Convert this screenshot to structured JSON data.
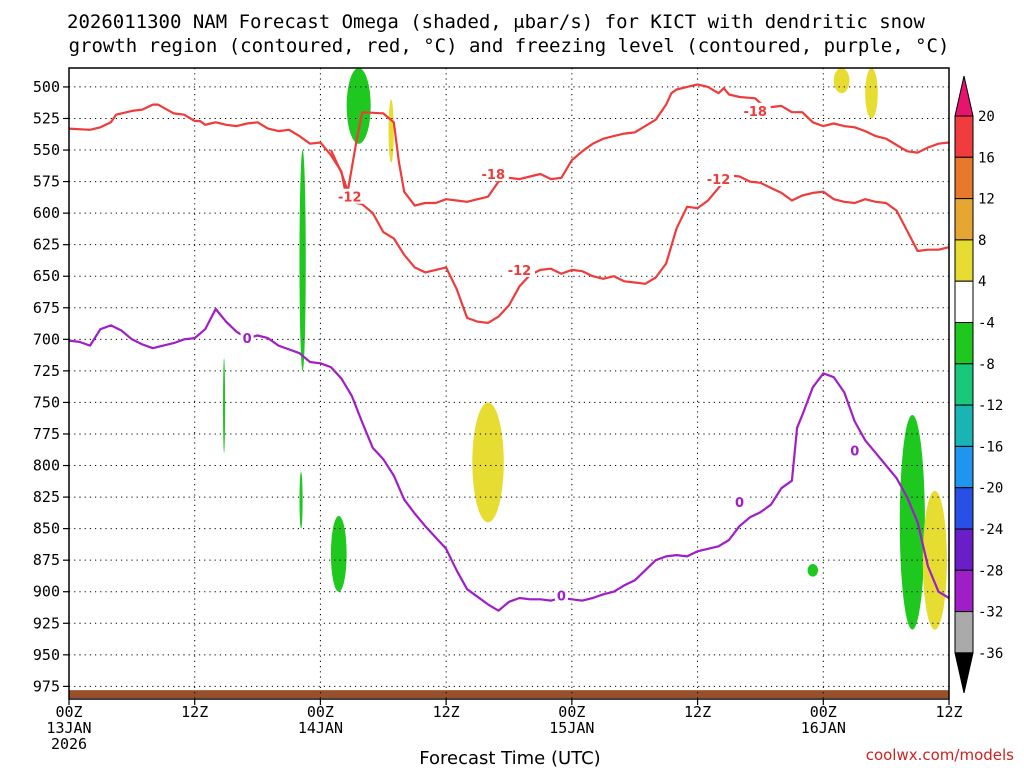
{
  "chart_data": {
    "type": "time-height contour",
    "title_line1": "2026011300 NAM Forecast Omega (shaded, μbar/s) for KICT with dendritic snow",
    "title_line2": "growth region (contoured, red, °C) and freezing level (contoured, purple, °C)",
    "xlabel": "Forecast Time (UTC)",
    "credit": "coolwx.com/models",
    "xlim_hours": [
      0,
      84
    ],
    "ylim_hpa": [
      485,
      985
    ],
    "y_ticks": [
      500,
      525,
      550,
      575,
      600,
      625,
      650,
      675,
      700,
      725,
      750,
      775,
      800,
      825,
      850,
      875,
      900,
      925,
      950,
      975
    ],
    "x_ticks": [
      {
        "h": 0,
        "l1": "00Z",
        "l2": "13JAN",
        "l3": "2026"
      },
      {
        "h": 12,
        "l1": "12Z",
        "l2": "",
        "l3": ""
      },
      {
        "h": 24,
        "l1": "00Z",
        "l2": "14JAN",
        "l3": ""
      },
      {
        "h": 36,
        "l1": "12Z",
        "l2": "",
        "l3": ""
      },
      {
        "h": 48,
        "l1": "00Z",
        "l2": "15JAN",
        "l3": ""
      },
      {
        "h": 60,
        "l1": "12Z",
        "l2": "",
        "l3": ""
      },
      {
        "h": 72,
        "l1": "00Z",
        "l2": "16JAN",
        "l3": ""
      },
      {
        "h": 84,
        "l1": "12Z",
        "l2": "",
        "l3": ""
      }
    ],
    "colorbar": {
      "labels": [
        "20",
        "16",
        "12",
        "8",
        "4",
        "-4",
        "-8",
        "-12",
        "-16",
        "-20",
        "-24",
        "-28",
        "-32",
        "-36"
      ],
      "colors": [
        "#f03c3c",
        "#e8782a",
        "#e6a632",
        "#e6dc32",
        "#ffffff",
        "#1ec81e",
        "#19c87a",
        "#1ab4b4",
        "#1e96f0",
        "#2850e6",
        "#6a1ec8",
        "#a01ec8",
        "#aaaaaa"
      ],
      "top_arrow": "#e6146e",
      "bottom_arrow": "#000000"
    },
    "series": [
      {
        "name": "-18 °C",
        "color": "#ef3b3b",
        "label": "-18",
        "label_points": [
          [
            40.5,
            569
          ],
          [
            65.5,
            519
          ]
        ],
        "points": [
          [
            0,
            533
          ],
          [
            2,
            534
          ],
          [
            3,
            532
          ],
          [
            4,
            528
          ],
          [
            4.5,
            522
          ],
          [
            6,
            519
          ],
          [
            7,
            518
          ],
          [
            8,
            514
          ],
          [
            8.5,
            514
          ],
          [
            10,
            521
          ],
          [
            11,
            522
          ],
          [
            12,
            527
          ],
          [
            12.5,
            527
          ],
          [
            13,
            530
          ],
          [
            13.5,
            529
          ],
          [
            14,
            528
          ],
          [
            15,
            530
          ],
          [
            16,
            531
          ],
          [
            17,
            529
          ],
          [
            18,
            528
          ],
          [
            19,
            533
          ],
          [
            20,
            535
          ],
          [
            21,
            534
          ],
          [
            22,
            539
          ],
          [
            23,
            545
          ],
          [
            24,
            544
          ],
          [
            25,
            554
          ],
          [
            26,
            567
          ],
          [
            26.5,
            588
          ],
          [
            27.5,
            540
          ],
          [
            28,
            520
          ],
          [
            30,
            521
          ],
          [
            31,
            528
          ],
          [
            31.5,
            560
          ],
          [
            32,
            583
          ],
          [
            33,
            594
          ],
          [
            34,
            592
          ],
          [
            35,
            592
          ],
          [
            36,
            589
          ],
          [
            37,
            590
          ],
          [
            38,
            591
          ],
          [
            39,
            589
          ],
          [
            40,
            587
          ],
          [
            41,
            575
          ],
          [
            42,
            572
          ],
          [
            43,
            573
          ],
          [
            44,
            571
          ],
          [
            45,
            569
          ],
          [
            46,
            573
          ],
          [
            47,
            572
          ],
          [
            48,
            558
          ],
          [
            49,
            551
          ],
          [
            50,
            545
          ],
          [
            51,
            541
          ],
          [
            52,
            539
          ],
          [
            53,
            537
          ],
          [
            54,
            536
          ],
          [
            55,
            531
          ],
          [
            56,
            526
          ],
          [
            57,
            514
          ],
          [
            57.5,
            505
          ],
          [
            58,
            502
          ],
          [
            59,
            500
          ],
          [
            60,
            498
          ],
          [
            61,
            500
          ],
          [
            62,
            505
          ],
          [
            62.5,
            501
          ],
          [
            63,
            506
          ],
          [
            64,
            508
          ],
          [
            65.5,
            509
          ],
          [
            66,
            513
          ],
          [
            67,
            516
          ],
          [
            68,
            515
          ],
          [
            69,
            520
          ],
          [
            70,
            520
          ],
          [
            71,
            528
          ],
          [
            72,
            531
          ],
          [
            73,
            529
          ],
          [
            74,
            531
          ],
          [
            75,
            532
          ],
          [
            76,
            535
          ],
          [
            77,
            539
          ],
          [
            78,
            541
          ],
          [
            79,
            546
          ],
          [
            80,
            551
          ],
          [
            81,
            552
          ],
          [
            82,
            548
          ],
          [
            83,
            545
          ],
          [
            84,
            544
          ]
        ]
      },
      {
        "name": "-12 °C",
        "color": "#ef3b3b",
        "label": "-12",
        "label_points": [
          [
            26.8,
            587
          ],
          [
            43,
            645
          ],
          [
            62,
            573
          ]
        ],
        "points": [
          [
            25,
            550
          ],
          [
            26,
            568
          ],
          [
            26.5,
            580
          ],
          [
            27,
            591
          ],
          [
            28,
            593
          ],
          [
            29,
            600
          ],
          [
            30,
            615
          ],
          [
            31,
            620
          ],
          [
            32,
            633
          ],
          [
            33,
            643
          ],
          [
            34,
            647
          ],
          [
            35,
            645
          ],
          [
            36,
            643
          ],
          [
            37,
            660
          ],
          [
            38,
            683
          ],
          [
            39,
            686
          ],
          [
            40,
            687
          ],
          [
            41,
            682
          ],
          [
            42,
            673
          ],
          [
            43,
            658
          ],
          [
            44,
            649
          ],
          [
            45,
            645
          ],
          [
            46,
            644
          ],
          [
            47,
            648
          ],
          [
            48,
            645
          ],
          [
            49,
            646
          ],
          [
            50,
            650
          ],
          [
            51,
            652
          ],
          [
            52,
            650
          ],
          [
            53,
            654
          ],
          [
            54,
            655
          ],
          [
            55,
            656
          ],
          [
            56,
            651
          ],
          [
            57,
            640
          ],
          [
            58,
            612
          ],
          [
            59,
            595
          ],
          [
            60,
            596
          ],
          [
            61,
            590
          ],
          [
            62,
            580
          ],
          [
            63,
            570
          ],
          [
            64,
            571
          ],
          [
            65,
            575
          ],
          [
            66,
            576
          ],
          [
            67,
            580
          ],
          [
            68,
            584
          ],
          [
            69,
            590
          ],
          [
            70,
            586
          ],
          [
            71,
            584
          ],
          [
            72,
            583
          ],
          [
            73,
            589
          ],
          [
            74,
            591
          ],
          [
            75,
            592
          ],
          [
            76,
            589
          ],
          [
            77,
            591
          ],
          [
            78,
            592
          ],
          [
            79,
            598
          ],
          [
            80,
            614
          ],
          [
            81,
            630
          ],
          [
            82,
            629
          ],
          [
            83,
            629
          ],
          [
            84,
            627
          ]
        ]
      },
      {
        "name": "0 °C freezing level",
        "color": "#a01ec8",
        "label": "0",
        "label_points": [
          [
            17,
            699
          ],
          [
            47,
            903
          ],
          [
            64,
            829
          ],
          [
            75,
            788
          ]
        ],
        "points": [
          [
            0,
            701
          ],
          [
            1,
            702
          ],
          [
            2,
            705
          ],
          [
            3,
            692
          ],
          [
            4,
            689
          ],
          [
            5,
            693
          ],
          [
            6,
            700
          ],
          [
            7,
            704
          ],
          [
            8,
            707
          ],
          [
            9,
            705
          ],
          [
            10,
            703
          ],
          [
            11,
            700
          ],
          [
            12,
            699
          ],
          [
            13,
            692
          ],
          [
            14,
            676
          ],
          [
            15,
            686
          ],
          [
            16,
            694
          ],
          [
            17,
            699
          ],
          [
            18,
            697
          ],
          [
            19,
            699
          ],
          [
            20,
            705
          ],
          [
            21,
            708
          ],
          [
            22,
            711
          ],
          [
            23,
            718
          ],
          [
            24,
            719
          ],
          [
            25,
            722
          ],
          [
            26,
            731
          ],
          [
            27,
            745
          ],
          [
            28,
            766
          ],
          [
            29,
            786
          ],
          [
            30,
            795
          ],
          [
            31,
            808
          ],
          [
            32,
            827
          ],
          [
            33,
            838
          ],
          [
            34,
            848
          ],
          [
            35,
            857
          ],
          [
            36,
            866
          ],
          [
            37,
            883
          ],
          [
            38,
            898
          ],
          [
            39,
            904
          ],
          [
            40,
            910
          ],
          [
            41,
            915
          ],
          [
            42,
            908
          ],
          [
            43,
            905
          ],
          [
            44,
            906
          ],
          [
            45,
            906
          ],
          [
            46,
            907
          ],
          [
            47,
            905
          ],
          [
            48,
            906
          ],
          [
            49,
            907
          ],
          [
            50,
            905
          ],
          [
            51,
            902
          ],
          [
            52,
            900
          ],
          [
            53,
            895
          ],
          [
            54,
            891
          ],
          [
            55,
            883
          ],
          [
            56,
            875
          ],
          [
            57,
            872
          ],
          [
            58,
            871
          ],
          [
            59,
            872
          ],
          [
            60,
            868
          ],
          [
            61,
            866
          ],
          [
            62,
            864
          ],
          [
            63,
            859
          ],
          [
            64,
            848
          ],
          [
            65,
            841
          ],
          [
            66,
            837
          ],
          [
            67,
            831
          ],
          [
            68,
            818
          ],
          [
            69,
            812
          ],
          [
            69.5,
            770
          ],
          [
            70,
            760
          ],
          [
            71,
            738
          ],
          [
            72,
            727
          ],
          [
            73,
            730
          ],
          [
            74,
            742
          ],
          [
            75,
            765
          ],
          [
            76,
            780
          ],
          [
            77,
            790
          ],
          [
            78,
            800
          ],
          [
            79,
            810
          ],
          [
            80,
            825
          ],
          [
            81,
            845
          ],
          [
            82,
            880
          ],
          [
            83,
            900
          ],
          [
            84,
            905
          ]
        ]
      }
    ],
    "shaded_regions": [
      {
        "value": "-8",
        "color": "#19c87a",
        "h": [
          27.2,
          28.2
        ],
        "p": [
          485,
          530
        ]
      },
      {
        "value": "-4",
        "color": "#1ec81e",
        "h": [
          26.5,
          28.8
        ],
        "p": [
          485,
          545
        ]
      },
      {
        "value": "4",
        "color": "#e6dc32",
        "h": [
          30.5,
          31
        ],
        "p": [
          510,
          560
        ]
      },
      {
        "value": "-4",
        "color": "#1ec81e",
        "h": [
          22,
          22.6
        ],
        "p": [
          550,
          725
        ]
      },
      {
        "value": "-4",
        "color": "#1ec81e",
        "h": [
          14.7,
          14.9
        ],
        "p": [
          715,
          790
        ]
      },
      {
        "value": "-4",
        "color": "#1ec81e",
        "h": [
          22,
          22.3
        ],
        "p": [
          805,
          850
        ]
      },
      {
        "value": "-4",
        "color": "#1ec81e",
        "h": [
          25,
          26.5
        ],
        "p": [
          840,
          900
        ]
      },
      {
        "value": "4",
        "color": "#e6dc32",
        "h": [
          38.5,
          41.5
        ],
        "p": [
          750,
          845
        ]
      },
      {
        "value": "-4",
        "color": "#1ec81e",
        "h": [
          70.5,
          71.5
        ],
        "p": [
          878,
          888
        ]
      },
      {
        "value": "4",
        "color": "#e6dc32",
        "h": [
          73,
          74.5
        ],
        "p": [
          485,
          505
        ]
      },
      {
        "value": "4",
        "color": "#e6dc32",
        "h": [
          76,
          77.2
        ],
        "p": [
          485,
          525
        ]
      },
      {
        "value": "-8",
        "color": "#19c87a",
        "h": [
          79.8,
          81.2
        ],
        "p": [
          800,
          915
        ]
      },
      {
        "value": "-4",
        "color": "#1ec81e",
        "h": [
          79.3,
          81.7
        ],
        "p": [
          760,
          930
        ]
      },
      {
        "value": "4",
        "color": "#e6dc32",
        "h": [
          81.5,
          83.8
        ],
        "p": [
          820,
          930
        ]
      }
    ]
  }
}
